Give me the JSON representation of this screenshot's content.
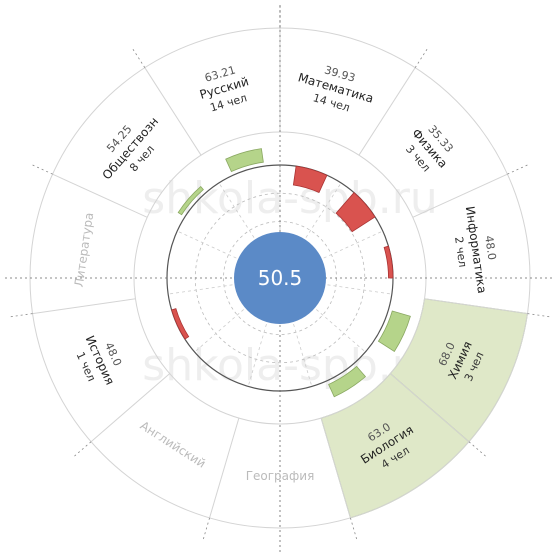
{
  "watermark": "shkola-spb.ru",
  "chart_data": {
    "type": "radial-bar",
    "center_value": "50.5",
    "radial_range": [
      0,
      100
    ],
    "grid": true,
    "colors": {
      "below": "#d9534f",
      "above": "#b5d48a",
      "highlight": "#dfe8c8",
      "center": "#5b8ac7"
    },
    "sectors": [
      {
        "subject": "Математика",
        "count": "14 чел",
        "value": 39.93,
        "value_label": "39.93",
        "active": true,
        "highlight": false
      },
      {
        "subject": "Физика",
        "count": "3 чел",
        "value": 35.33,
        "value_label": "35.33",
        "active": true,
        "highlight": false
      },
      {
        "subject": "Информатика",
        "count": "2 чел",
        "value": 48.0,
        "value_label": "48.0",
        "active": true,
        "highlight": false
      },
      {
        "subject": "Химия",
        "count": "3 чел",
        "value": 68.0,
        "value_label": "68.0",
        "active": true,
        "highlight": true
      },
      {
        "subject": "Биология",
        "count": "4 чел",
        "value": 63.0,
        "value_label": "63.0",
        "active": true,
        "highlight": true
      },
      {
        "subject": "География",
        "count": "",
        "value": null,
        "value_label": "",
        "active": false,
        "highlight": false
      },
      {
        "subject": "Английский",
        "count": "",
        "value": null,
        "value_label": "",
        "active": false,
        "highlight": false
      },
      {
        "subject": "История",
        "count": "1 чел",
        "value": 48.0,
        "value_label": "48.0",
        "active": true,
        "highlight": false
      },
      {
        "subject": "Литература",
        "count": "",
        "value": null,
        "value_label": "",
        "active": false,
        "highlight": false
      },
      {
        "subject": "Обществозн",
        "count": "8 чел",
        "value": 54.25,
        "value_label": "54.25",
        "active": true,
        "highlight": false
      },
      {
        "subject": "Русский",
        "count": "14 чел",
        "value": 63.21,
        "value_label": "63.21",
        "active": true,
        "highlight": false
      }
    ]
  }
}
